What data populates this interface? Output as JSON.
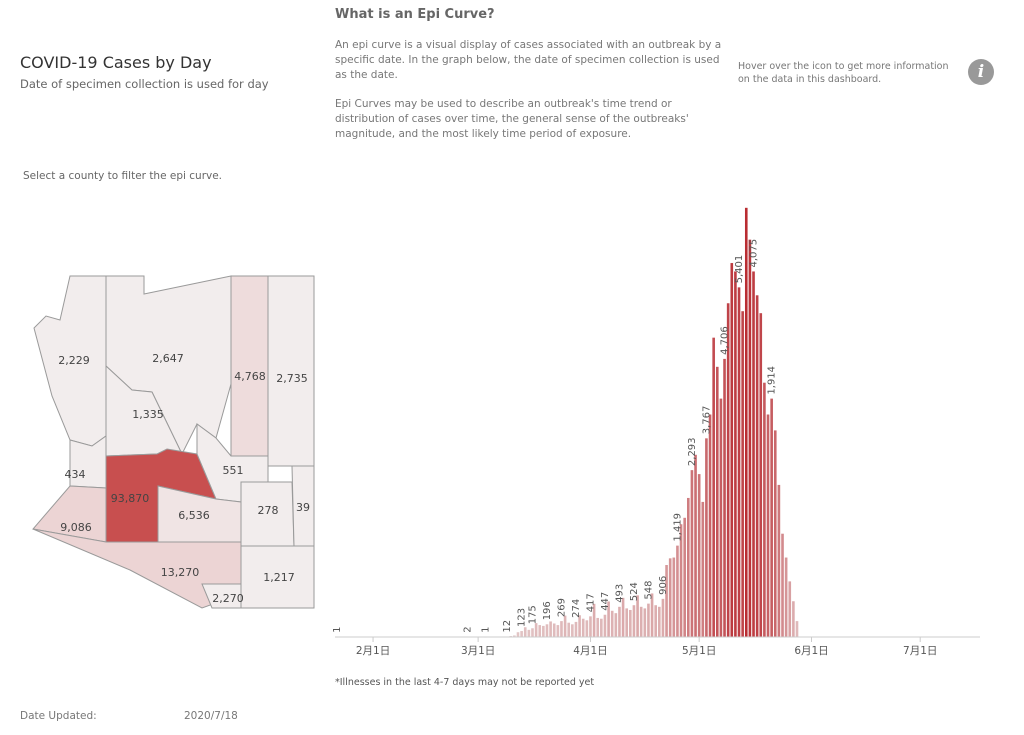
{
  "header": {
    "title": "COVID-19 Cases by Day",
    "subtitle": "Date of specimen collection is used for day"
  },
  "explainer": {
    "heading": "What is an Epi Curve?",
    "paragraph1": "An epi curve is a visual display of cases associated with an outbreak by a specific date. In the graph below, the date of specimen collection is used as the date.",
    "paragraph2": "Epi Curves may be used to describe an outbreak's time trend or distribution of cases over time, the general sense of the outbreaks' magnitude, and the most likely time period of exposure."
  },
  "info": {
    "hover_text": "Hover over the icon to get more information on the data in this dashboard.",
    "icon_glyph": "i",
    "icon": "info-icon"
  },
  "map": {
    "instruction": "Select a county to filter the epi curve.",
    "counties": [
      {
        "id": "mohave",
        "cases": "2,229",
        "fill": "#f2eded"
      },
      {
        "id": "coconino",
        "cases": "2,647",
        "fill": "#f2eded"
      },
      {
        "id": "navajo",
        "cases": "4,768",
        "fill": "#eedcdc"
      },
      {
        "id": "apache",
        "cases": "2,735",
        "fill": "#f2eded"
      },
      {
        "id": "yavapai",
        "cases": "1,335",
        "fill": "#f2eded"
      },
      {
        "id": "la-paz",
        "cases": "434",
        "fill": "#f2eded"
      },
      {
        "id": "maricopa",
        "cases": "93,870",
        "fill": "#c84f4f"
      },
      {
        "id": "gila",
        "cases": "551",
        "fill": "#f2eded"
      },
      {
        "id": "pinal",
        "cases": "6,536",
        "fill": "#f0e4e4"
      },
      {
        "id": "graham",
        "cases": "278",
        "fill": "#f2eded"
      },
      {
        "id": "greenlee",
        "cases": "39",
        "fill": "#f2eded"
      },
      {
        "id": "yuma",
        "cases": "9,086",
        "fill": "#ecd4d4"
      },
      {
        "id": "pima",
        "cases": "13,270",
        "fill": "#ecd4d4"
      },
      {
        "id": "santa-cruz",
        "cases": "2,270",
        "fill": "#f2eded"
      },
      {
        "id": "cochise",
        "cases": "1,217",
        "fill": "#f2eded"
      }
    ]
  },
  "chart_data": {
    "type": "bar",
    "x_start": "2020-01-22",
    "x_end": "2020-07-17",
    "x_ticks": [
      {
        "date": "2020-02-01",
        "label": "2月1日"
      },
      {
        "date": "2020-03-01",
        "label": "3月1日"
      },
      {
        "date": "2020-04-01",
        "label": "4月1日"
      },
      {
        "date": "2020-05-01",
        "label": "5月1日"
      },
      {
        "date": "2020-06-01",
        "label": "6月1日"
      },
      {
        "date": "2020-07-01",
        "label": "7月1日"
      }
    ],
    "values": [
      1,
      0,
      0,
      0,
      0,
      0,
      0,
      0,
      0,
      0,
      0,
      0,
      0,
      0,
      0,
      0,
      0,
      0,
      0,
      0,
      0,
      0,
      0,
      0,
      0,
      0,
      0,
      0,
      0,
      0,
      0,
      0,
      0,
      0,
      0,
      0,
      2,
      0,
      0,
      0,
      0,
      1,
      0,
      0,
      0,
      0,
      2,
      5,
      12,
      20,
      60,
      75,
      123,
      90,
      110,
      175,
      150,
      140,
      160,
      196,
      170,
      150,
      200,
      269,
      180,
      160,
      190,
      274,
      230,
      210,
      260,
      417,
      240,
      230,
      280,
      447,
      330,
      300,
      380,
      493,
      360,
      340,
      400,
      524,
      380,
      360,
      420,
      548,
      400,
      380,
      480,
      906,
      990,
      1000,
      1150,
      1419,
      1500,
      1750,
      2100,
      2293,
      2050,
      1700,
      2500,
      2800,
      3767,
      3400,
      3000,
      3500,
      4200,
      4706,
      4600,
      4400,
      4100,
      5401,
      5000,
      4600,
      4300,
      4075,
      3200,
      2800,
      3000,
      2600,
      1914,
      1300,
      1000,
      700,
      450,
      200
    ],
    "value_labels": [
      {
        "date": "2020-01-22",
        "label": "1"
      },
      {
        "date": "2020-02-27",
        "label": "2"
      },
      {
        "date": "2020-03-03",
        "label": "1"
      },
      {
        "date": "2020-03-09",
        "label": "12"
      },
      {
        "date": "2020-03-13",
        "label": "123"
      },
      {
        "date": "2020-03-16",
        "label": "175"
      },
      {
        "date": "2020-03-20",
        "label": "196"
      },
      {
        "date": "2020-03-24",
        "label": "269"
      },
      {
        "date": "2020-03-28",
        "label": "274"
      },
      {
        "date": "2020-04-01",
        "label": "417"
      },
      {
        "date": "2020-04-05",
        "label": "447"
      },
      {
        "date": "2020-04-09",
        "label": "493"
      },
      {
        "date": "2020-04-13",
        "label": "524"
      },
      {
        "date": "2020-04-17",
        "label": "548"
      },
      {
        "date": "2020-04-21",
        "label": "906"
      },
      {
        "date": "2020-04-25",
        "label": "1,419"
      },
      {
        "date": "2020-04-29",
        "label": "2,293"
      },
      {
        "date": "2020-05-03",
        "label": "3,767"
      },
      {
        "date": "2020-05-08",
        "label": "4,706"
      },
      {
        "date": "2020-05-12",
        "label": "5,401"
      },
      {
        "date": "2020-05-16",
        "label": "4,075"
      },
      {
        "date": "2020-05-21",
        "label": "1,914"
      }
    ],
    "ylim": [
      0,
      5600
    ],
    "color_low": "#e5d0d0",
    "color_high": "#b8292f",
    "title": "",
    "xlabel": "",
    "ylabel": ""
  },
  "footnote": "*Illnesses in the last 4-7 days may not be reported yet",
  "updated": {
    "label": "Date Updated:",
    "value": "2020/7/18"
  }
}
